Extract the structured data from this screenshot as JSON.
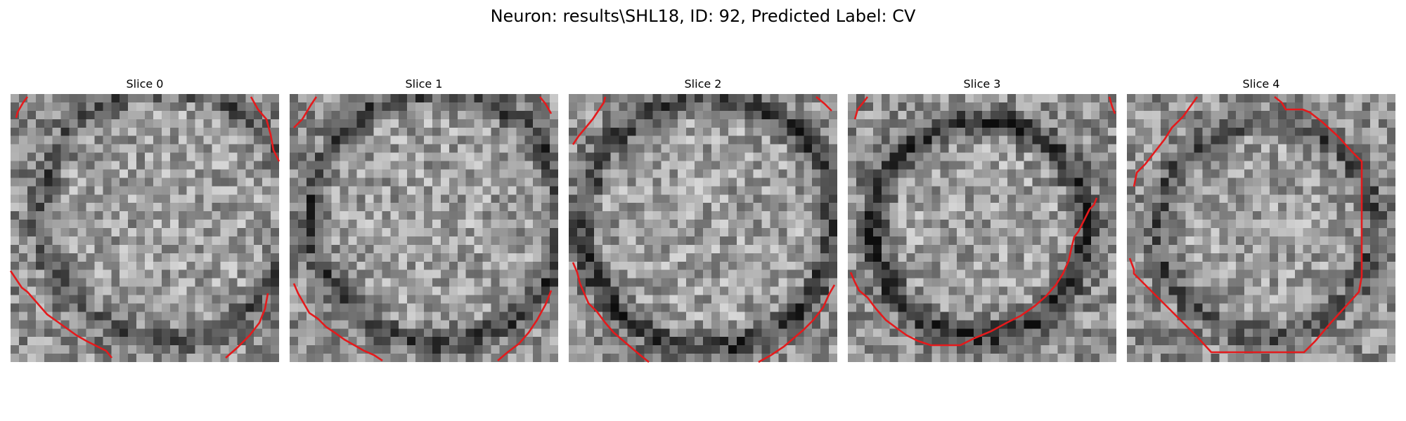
{
  "figure": {
    "title": "Neuron: results\\SHL18, ID: 92, Predicted Label: CV",
    "contour_color": "#e41a1c"
  },
  "slices": [
    {
      "title": "Slice 0"
    },
    {
      "title": "Slice 1"
    },
    {
      "title": "Slice 2"
    },
    {
      "title": "Slice 3"
    },
    {
      "title": "Slice 4"
    }
  ]
}
